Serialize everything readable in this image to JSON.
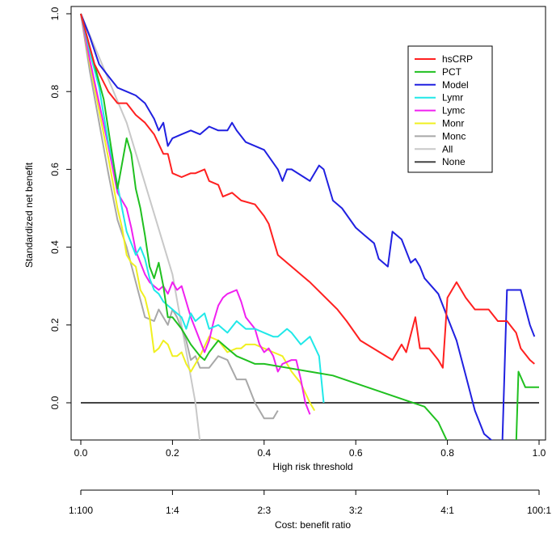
{
  "chart_data": {
    "type": "line",
    "title": "",
    "xlabel": "High risk threshold",
    "ylabel": "Standardized net benefit",
    "xlim": [
      0,
      1
    ],
    "ylim": [
      -0.1,
      1.0
    ],
    "xticks": [
      "0.0",
      "0.2",
      "0.4",
      "0.6",
      "0.8",
      "1.0"
    ],
    "yticks": [
      "0.0",
      "0.2",
      "0.4",
      "0.6",
      "0.8",
      "1.0"
    ],
    "secondary_axis": {
      "title": "Cost: benefit ratio",
      "ticks": [
        {
          "x": 0.0,
          "label": "1:100"
        },
        {
          "x": 0.2,
          "label": "1:4"
        },
        {
          "x": 0.4,
          "label": "2:3"
        },
        {
          "x": 0.6,
          "label": "3:2"
        },
        {
          "x": 0.8,
          "label": "4:1"
        },
        {
          "x": 1.0,
          "label": "100:1"
        }
      ]
    },
    "legend_position": "top-right",
    "grid": false,
    "series": [
      {
        "name": "hsCRP",
        "color": "#ff2020",
        "x": [
          0.0,
          0.03,
          0.06,
          0.08,
          0.1,
          0.12,
          0.14,
          0.16,
          0.18,
          0.19,
          0.2,
          0.22,
          0.24,
          0.25,
          0.27,
          0.28,
          0.3,
          0.31,
          0.33,
          0.35,
          0.38,
          0.4,
          0.41,
          0.43,
          0.5,
          0.56,
          0.58,
          0.61,
          0.68,
          0.7,
          0.71,
          0.73,
          0.74,
          0.76,
          0.78,
          0.79,
          0.8,
          0.82,
          0.84,
          0.86,
          0.88,
          0.89,
          0.91,
          0.93,
          0.95,
          0.96,
          0.98,
          0.99
        ],
        "values": [
          1.0,
          0.87,
          0.8,
          0.77,
          0.77,
          0.74,
          0.72,
          0.69,
          0.64,
          0.64,
          0.59,
          0.58,
          0.59,
          0.59,
          0.6,
          0.57,
          0.56,
          0.53,
          0.54,
          0.52,
          0.51,
          0.48,
          0.46,
          0.38,
          0.31,
          0.24,
          0.21,
          0.16,
          0.11,
          0.15,
          0.13,
          0.22,
          0.14,
          0.14,
          0.11,
          0.09,
          0.27,
          0.31,
          0.27,
          0.24,
          0.24,
          0.24,
          0.21,
          0.21,
          0.18,
          0.14,
          0.11,
          0.1
        ]
      },
      {
        "name": "PCT",
        "color": "#20c020",
        "x": [
          0.0,
          0.05,
          0.08,
          0.1,
          0.11,
          0.12,
          0.13,
          0.14,
          0.15,
          0.16,
          0.17,
          0.18,
          0.19,
          0.2,
          0.22,
          0.24,
          0.26,
          0.27,
          0.28,
          0.3,
          0.32,
          0.34,
          0.36,
          0.38,
          0.4,
          0.45,
          0.5,
          0.55,
          0.6,
          0.65,
          0.7,
          0.75,
          0.78,
          0.8,
          0.805,
          0.95,
          0.955,
          0.97,
          0.98,
          1.0
        ],
        "values": [
          1.0,
          0.78,
          0.55,
          0.68,
          0.64,
          0.55,
          0.5,
          0.43,
          0.35,
          0.32,
          0.36,
          0.3,
          0.22,
          0.22,
          0.19,
          0.15,
          0.12,
          0.11,
          0.13,
          0.16,
          0.14,
          0.12,
          0.11,
          0.1,
          0.1,
          0.09,
          0.08,
          0.07,
          0.05,
          0.03,
          0.01,
          -0.01,
          -0.05,
          -0.1,
          -0.11,
          -0.11,
          0.08,
          0.04,
          0.04,
          0.04
        ]
      },
      {
        "name": "Model",
        "color": "#2020e0",
        "x": [
          0.0,
          0.02,
          0.04,
          0.06,
          0.08,
          0.1,
          0.12,
          0.14,
          0.16,
          0.17,
          0.18,
          0.19,
          0.2,
          0.22,
          0.24,
          0.26,
          0.28,
          0.3,
          0.32,
          0.33,
          0.34,
          0.36,
          0.4,
          0.43,
          0.44,
          0.45,
          0.46,
          0.5,
          0.52,
          0.53,
          0.55,
          0.57,
          0.6,
          0.62,
          0.64,
          0.65,
          0.67,
          0.68,
          0.7,
          0.72,
          0.73,
          0.74,
          0.75,
          0.78,
          0.8,
          0.82,
          0.84,
          0.86,
          0.88,
          0.9,
          0.92,
          0.93,
          0.96,
          0.98,
          0.99
        ],
        "values": [
          1.0,
          0.94,
          0.87,
          0.84,
          0.81,
          0.8,
          0.79,
          0.77,
          0.73,
          0.7,
          0.72,
          0.66,
          0.68,
          0.69,
          0.7,
          0.69,
          0.71,
          0.7,
          0.7,
          0.72,
          0.7,
          0.67,
          0.65,
          0.6,
          0.57,
          0.6,
          0.6,
          0.57,
          0.61,
          0.6,
          0.52,
          0.5,
          0.45,
          0.43,
          0.41,
          0.37,
          0.35,
          0.44,
          0.42,
          0.36,
          0.37,
          0.35,
          0.32,
          0.28,
          0.22,
          0.16,
          0.07,
          -0.02,
          -0.08,
          -0.1,
          -0.1,
          0.29,
          0.29,
          0.2,
          0.17
        ]
      },
      {
        "name": "Lymr",
        "color": "#20e8e8",
        "x": [
          0.0,
          0.02,
          0.04,
          0.05,
          0.06,
          0.07,
          0.08,
          0.09,
          0.1,
          0.11,
          0.12,
          0.13,
          0.14,
          0.15,
          0.16,
          0.17,
          0.18,
          0.2,
          0.22,
          0.23,
          0.24,
          0.25,
          0.27,
          0.28,
          0.3,
          0.32,
          0.34,
          0.36,
          0.38,
          0.4,
          0.42,
          0.43,
          0.45,
          0.46,
          0.48,
          0.5,
          0.52,
          0.53
        ],
        "values": [
          1.0,
          0.9,
          0.81,
          0.74,
          0.67,
          0.62,
          0.56,
          0.5,
          0.44,
          0.41,
          0.38,
          0.4,
          0.37,
          0.32,
          0.29,
          0.28,
          0.26,
          0.24,
          0.22,
          0.19,
          0.23,
          0.21,
          0.23,
          0.19,
          0.2,
          0.18,
          0.21,
          0.19,
          0.19,
          0.18,
          0.17,
          0.17,
          0.19,
          0.18,
          0.15,
          0.17,
          0.12,
          0.0
        ]
      },
      {
        "name": "Lymc",
        "color": "#f020f0",
        "x": [
          0.0,
          0.02,
          0.04,
          0.06,
          0.08,
          0.09,
          0.1,
          0.11,
          0.12,
          0.13,
          0.14,
          0.15,
          0.16,
          0.17,
          0.18,
          0.19,
          0.2,
          0.21,
          0.22,
          0.23,
          0.24,
          0.25,
          0.26,
          0.27,
          0.28,
          0.29,
          0.3,
          0.31,
          0.32,
          0.34,
          0.35,
          0.36,
          0.38,
          0.39,
          0.4,
          0.41,
          0.42,
          0.43,
          0.44,
          0.46,
          0.47,
          0.48,
          0.49,
          0.5
        ],
        "values": [
          1.0,
          0.88,
          0.77,
          0.66,
          0.54,
          0.52,
          0.5,
          0.45,
          0.39,
          0.36,
          0.33,
          0.31,
          0.3,
          0.29,
          0.3,
          0.28,
          0.31,
          0.29,
          0.3,
          0.26,
          0.22,
          0.19,
          0.16,
          0.13,
          0.16,
          0.21,
          0.25,
          0.27,
          0.28,
          0.29,
          0.26,
          0.22,
          0.19,
          0.15,
          0.13,
          0.14,
          0.12,
          0.08,
          0.1,
          0.11,
          0.11,
          0.06,
          0.0,
          -0.03
        ]
      },
      {
        "name": "Monr",
        "color": "#f0f020",
        "x": [
          0.0,
          0.02,
          0.04,
          0.06,
          0.08,
          0.09,
          0.1,
          0.11,
          0.12,
          0.13,
          0.14,
          0.15,
          0.16,
          0.17,
          0.18,
          0.19,
          0.2,
          0.21,
          0.22,
          0.23,
          0.24,
          0.25,
          0.26,
          0.28,
          0.3,
          0.32,
          0.34,
          0.35,
          0.36,
          0.38,
          0.4,
          0.42,
          0.44,
          0.46,
          0.48,
          0.5,
          0.51
        ],
        "values": [
          1.0,
          0.87,
          0.75,
          0.63,
          0.5,
          0.45,
          0.38,
          0.36,
          0.35,
          0.29,
          0.27,
          0.22,
          0.13,
          0.14,
          0.16,
          0.15,
          0.12,
          0.12,
          0.13,
          0.1,
          0.08,
          0.1,
          0.12,
          0.17,
          0.16,
          0.13,
          0.14,
          0.14,
          0.15,
          0.15,
          0.14,
          0.13,
          0.12,
          0.08,
          0.05,
          0.0,
          -0.02
        ]
      },
      {
        "name": "Monc",
        "color": "#a8a8a8",
        "x": [
          0.0,
          0.02,
          0.04,
          0.06,
          0.08,
          0.1,
          0.12,
          0.14,
          0.16,
          0.17,
          0.18,
          0.19,
          0.2,
          0.21,
          0.22,
          0.23,
          0.24,
          0.25,
          0.26,
          0.28,
          0.3,
          0.32,
          0.34,
          0.36,
          0.38,
          0.4,
          0.42,
          0.43
        ],
        "values": [
          1.0,
          0.85,
          0.72,
          0.59,
          0.47,
          0.4,
          0.31,
          0.22,
          0.21,
          0.24,
          0.22,
          0.2,
          0.24,
          0.22,
          0.19,
          0.16,
          0.11,
          0.12,
          0.09,
          0.09,
          0.12,
          0.11,
          0.06,
          0.06,
          0.0,
          -0.04,
          -0.04,
          -0.02
        ]
      },
      {
        "name": "All",
        "color": "#c8c8c8",
        "x": [
          0.0,
          0.1,
          0.2,
          0.25,
          0.26
        ],
        "values": [
          1.0,
          0.72,
          0.33,
          0.0,
          -0.1
        ]
      },
      {
        "name": "None",
        "color": "#444444",
        "x": [
          0.0,
          1.0
        ],
        "values": [
          0.0,
          0.0
        ]
      }
    ]
  }
}
